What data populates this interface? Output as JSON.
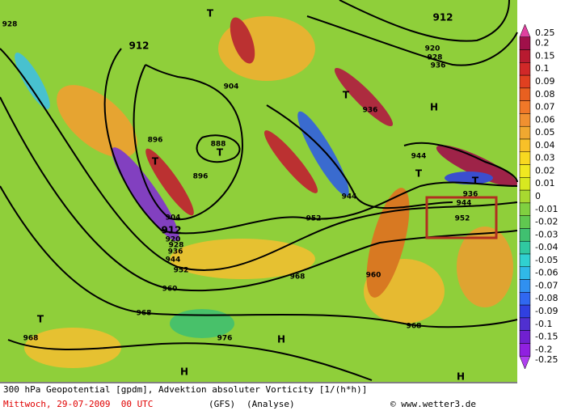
{
  "map": {
    "labels": [
      "928",
      "T",
      "912",
      "912",
      "920",
      "928",
      "936",
      "904",
      "T",
      "H",
      "936",
      "896",
      "888",
      "T",
      "T",
      "944",
      "T",
      "896",
      "T",
      "936",
      "944",
      "944",
      "904",
      "912",
      "952",
      "952",
      "920",
      "928",
      "936",
      "944",
      "952",
      "968",
      "960",
      "960",
      "T",
      "968",
      "968",
      "976",
      "968",
      "H",
      "H",
      "H"
    ]
  },
  "colorbar": {
    "labels": [
      "0.25",
      "0.2",
      "0.15",
      "0.1",
      "0.09",
      "0.08",
      "0.07",
      "0.06",
      "0.05",
      "0.04",
      "0.03",
      "0.02",
      "0.01",
      "0",
      "-0.01",
      "-0.02",
      "-0.03",
      "-0.04",
      "-0.05",
      "-0.06",
      "-0.07",
      "-0.08",
      "-0.09",
      "-0.1",
      "-0.15",
      "-0.2",
      "-0.25"
    ],
    "colors": [
      "#e040a0",
      "#a0104a",
      "#b81a30",
      "#d02828",
      "#e04020",
      "#e86020",
      "#f07828",
      "#f09030",
      "#f0a830",
      "#f8c028",
      "#f8d820",
      "#f0e820",
      "#d8e820",
      "#a8d830",
      "#80d040",
      "#60c850",
      "#40c070",
      "#30c8a0",
      "#30d0d0",
      "#30b8e8",
      "#3090f0",
      "#3068f0",
      "#3040e0",
      "#5030d0",
      "#7020d0",
      "#9020e0",
      "#b040f0"
    ]
  },
  "footer": {
    "title": "300 hPa Geopotential [gpdm], Advektion absoluter Vorticity [1/(h*h)]",
    "date": "Mittwoch, 29-07-2009  00 UTC",
    "model": "(GFS)",
    "kind": "(Analyse)",
    "source": "© www.wetter3.de"
  }
}
